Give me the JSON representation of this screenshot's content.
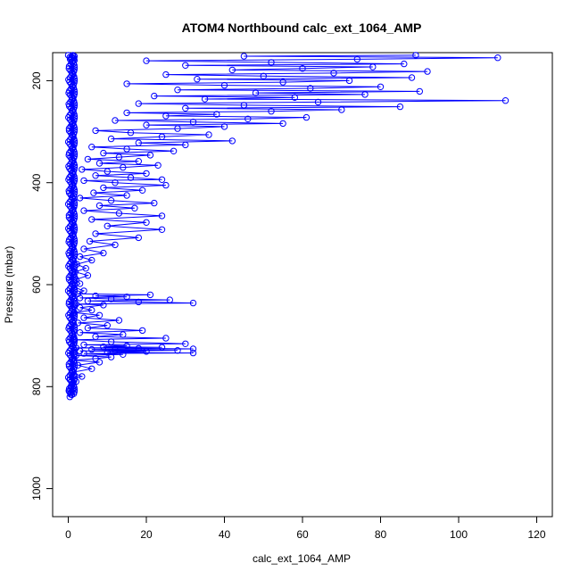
{
  "chart_data": {
    "type": "scatter",
    "title": "ATOM4 Northbound calc_ext_1064_AMP",
    "xlabel": "calc_ext_1064_AMP",
    "ylabel": "Pressure (mbar)",
    "xlim": [
      -4,
      124
    ],
    "ylim": [
      1055,
      145
    ],
    "y_reversed": true,
    "x_ticks": [
      0,
      20,
      40,
      60,
      80,
      100,
      120
    ],
    "y_ticks": [
      200,
      400,
      600,
      800,
      1000
    ],
    "grid": false,
    "legend": "none",
    "marker": "open-circle",
    "connect_points": true,
    "series": [
      {
        "color": "#0000ff",
        "points": [
          [
            0.4,
            820
          ],
          [
            0.6,
            815
          ],
          [
            0.3,
            810
          ],
          [
            1.2,
            805
          ],
          [
            0.8,
            798
          ],
          [
            2.0,
            790
          ],
          [
            0.5,
            785
          ],
          [
            3.5,
            780
          ],
          [
            1.0,
            772
          ],
          [
            6.0,
            765
          ],
          [
            2.5,
            758
          ],
          [
            8.0,
            752
          ],
          [
            1.5,
            748
          ],
          [
            7.0,
            745
          ],
          [
            11.0,
            742
          ],
          [
            2.0,
            739
          ],
          [
            14.0,
            737
          ],
          [
            4.0,
            735
          ],
          [
            32.0,
            734
          ],
          [
            10.0,
            733
          ],
          [
            20.0,
            731
          ],
          [
            3.0,
            730
          ],
          [
            28.0,
            729
          ],
          [
            12.0,
            728
          ],
          [
            6.0,
            727
          ],
          [
            32.0,
            726
          ],
          [
            18.0,
            725
          ],
          [
            2.0,
            724
          ],
          [
            24.0,
            723
          ],
          [
            9.0,
            722
          ],
          [
            15.0,
            720
          ],
          [
            4.0,
            718
          ],
          [
            30.0,
            716
          ],
          [
            11.0,
            712
          ],
          [
            1.5,
            708
          ],
          [
            25.0,
            705
          ],
          [
            7.0,
            702
          ],
          [
            14.0,
            698
          ],
          [
            3.0,
            694
          ],
          [
            19.0,
            690
          ],
          [
            5.0,
            685
          ],
          [
            10.0,
            680
          ],
          [
            2.5,
            675
          ],
          [
            13.0,
            670
          ],
          [
            4.0,
            665
          ],
          [
            8.0,
            660
          ],
          [
            1.5,
            655
          ],
          [
            6.0,
            650
          ],
          [
            3.0,
            645
          ],
          [
            9.0,
            640
          ],
          [
            2.0,
            638
          ],
          [
            32.0,
            636
          ],
          [
            18.0,
            634
          ],
          [
            5.0,
            632
          ],
          [
            26.0,
            630
          ],
          [
            11.0,
            628
          ],
          [
            3.0,
            626
          ],
          [
            15.0,
            624
          ],
          [
            7.0,
            622
          ],
          [
            21.0,
            620
          ],
          [
            2.5,
            618
          ],
          [
            4.0,
            612
          ],
          [
            1.5,
            605
          ],
          [
            3.0,
            598
          ],
          [
            2.0,
            590
          ],
          [
            5.0,
            582
          ],
          [
            1.8,
            575
          ],
          [
            4.5,
            568
          ],
          [
            2.2,
            560
          ],
          [
            6.0,
            552
          ],
          [
            3.0,
            545
          ],
          [
            9.0,
            538
          ],
          [
            4.0,
            530
          ],
          [
            12.0,
            522
          ],
          [
            5.5,
            515
          ],
          [
            18.0,
            508
          ],
          [
            7.0,
            500
          ],
          [
            24.0,
            492
          ],
          [
            10.0,
            485
          ],
          [
            20.0,
            478
          ],
          [
            6.0,
            472
          ],
          [
            24.0,
            465
          ],
          [
            13.0,
            460
          ],
          [
            4.0,
            455
          ],
          [
            17.0,
            450
          ],
          [
            8.0,
            445
          ],
          [
            22.0,
            440
          ],
          [
            11.0,
            435
          ],
          [
            3.0,
            430
          ],
          [
            15.0,
            425
          ],
          [
            6.5,
            420
          ],
          [
            19.0,
            415
          ],
          [
            9.0,
            410
          ],
          [
            25.0,
            405
          ],
          [
            12.0,
            400
          ],
          [
            4.0,
            396
          ],
          [
            24.0,
            394
          ],
          [
            16.0,
            390
          ],
          [
            7.0,
            386
          ],
          [
            20.0,
            382
          ],
          [
            10.0,
            378
          ],
          [
            3.5,
            374
          ],
          [
            14.0,
            370
          ],
          [
            23.0,
            366
          ],
          [
            8.0,
            362
          ],
          [
            18.0,
            358
          ],
          [
            5.0,
            354
          ],
          [
            13.0,
            350
          ],
          [
            21.0,
            346
          ],
          [
            9.0,
            342
          ],
          [
            27.0,
            338
          ],
          [
            15.0,
            334
          ],
          [
            6.0,
            330
          ],
          [
            30.0,
            326
          ],
          [
            18.0,
            322
          ],
          [
            42.0,
            318
          ],
          [
            11.0,
            314
          ],
          [
            24.0,
            310
          ],
          [
            36.0,
            306
          ],
          [
            16.0,
            302
          ],
          [
            7.0,
            298
          ],
          [
            28.0,
            294
          ],
          [
            40.0,
            290
          ],
          [
            20.0,
            287
          ],
          [
            55.0,
            284
          ],
          [
            32.0,
            281
          ],
          [
            12.0,
            278
          ],
          [
            46.0,
            275
          ],
          [
            61.0,
            272
          ],
          [
            25.0,
            269
          ],
          [
            38.0,
            266
          ],
          [
            15.0,
            263
          ],
          [
            52.0,
            260
          ],
          [
            70.0,
            257
          ],
          [
            30.0,
            254
          ],
          [
            85.0,
            251
          ],
          [
            45.0,
            248
          ],
          [
            18.0,
            245
          ],
          [
            64.0,
            242
          ],
          [
            112.0,
            239
          ],
          [
            35.0,
            236
          ],
          [
            58.0,
            233
          ],
          [
            22.0,
            230
          ],
          [
            76.0,
            227
          ],
          [
            48.0,
            224
          ],
          [
            90.0,
            221
          ],
          [
            28.0,
            218
          ],
          [
            62.0,
            215
          ],
          [
            80.0,
            212
          ],
          [
            40.0,
            209
          ],
          [
            15.0,
            206
          ],
          [
            55.0,
            203
          ],
          [
            72.0,
            200
          ],
          [
            33.0,
            197
          ],
          [
            88.0,
            194
          ],
          [
            50.0,
            191
          ],
          [
            25.0,
            188
          ],
          [
            68.0,
            185
          ],
          [
            92.0,
            182
          ],
          [
            42.0,
            179
          ],
          [
            60.0,
            176
          ],
          [
            78.0,
            173
          ],
          [
            30.0,
            170
          ],
          [
            86.0,
            167
          ],
          [
            52.0,
            164
          ],
          [
            20.0,
            161
          ],
          [
            74.0,
            158
          ],
          [
            110.0,
            155
          ],
          [
            45.0,
            152
          ],
          [
            89.0,
            150
          ]
        ]
      }
    ]
  }
}
